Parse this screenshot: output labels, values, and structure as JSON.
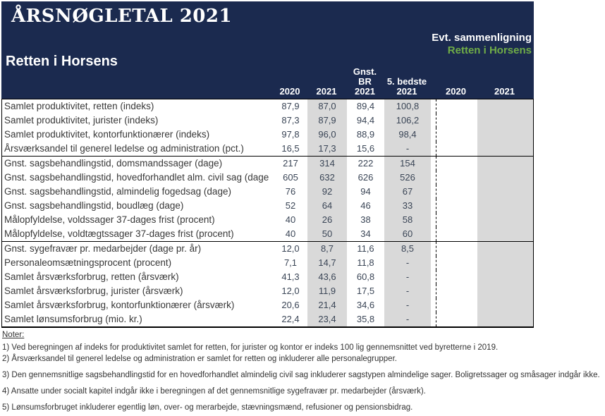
{
  "header": {
    "title": "ÅRSNØGLETAL 2021",
    "court_name": "Retten i Horsens",
    "comparison_label": "Evt. sammenligning",
    "comparison_court": "Retten i Horsens"
  },
  "colors": {
    "header_navy": "#1b2a4f",
    "comparison_green": "#70ad47",
    "shaded_column_gray": "#d9d9d9"
  },
  "columns": {
    "c2020": "2020",
    "c2021": "2021",
    "gnst_br": {
      "line1": "Gnst. BR",
      "line2": "2021"
    },
    "best5": {
      "line1": "5. bedste",
      "line2": "2021"
    },
    "cmp2020": "2020",
    "cmp2021": "2021"
  },
  "table": {
    "rows": [
      {
        "label": "Samlet produktivitet, retten (indeks)",
        "values": [
          "87,9",
          "87,0",
          "89,4",
          "100,8",
          "",
          ""
        ]
      },
      {
        "label": "Samlet produktivitet, jurister (indeks)",
        "values": [
          "87,3",
          "87,9",
          "94,4",
          "106,2",
          "",
          ""
        ]
      },
      {
        "label": "Samlet produktivitet, kontorfunktionærer (indeks)",
        "values": [
          "97,8",
          "96,0",
          "88,9",
          "98,4",
          "",
          ""
        ]
      },
      {
        "label": "Årsværksandel til generel ledelse og administration (pct.)",
        "values": [
          "16,5",
          "17,3",
          "15,6",
          "-",
          "",
          ""
        ]
      },
      {
        "label": "Gnst. sagsbehandlingstid, domsmandssager (dage)",
        "values": [
          "217",
          "314",
          "222",
          "154",
          "",
          ""
        ]
      },
      {
        "label": "Gnst. sagsbehandlingstid, hovedforhandlet alm. civil sag (dage",
        "values": [
          "605",
          "632",
          "626",
          "526",
          "",
          ""
        ]
      },
      {
        "label": "Gnst. sagsbehandlingstid, almindelig fogedsag (dage)",
        "values": [
          "76",
          "92",
          "94",
          "67",
          "",
          ""
        ]
      },
      {
        "label": "Gnst. sagsbehandlingstid, boudlæg (dage)",
        "values": [
          "52",
          "64",
          "46",
          "33",
          "",
          ""
        ]
      },
      {
        "label": "Målopfyldelse, voldssager 37-dages frist (procent)",
        "values": [
          "40",
          "26",
          "38",
          "58",
          "",
          ""
        ]
      },
      {
        "label": "Målopfyldelse, voldtægtssager 37-dages frist (procent)",
        "values": [
          "40",
          "50",
          "34",
          "60",
          "",
          ""
        ]
      },
      {
        "label": "Gnst. sygefravær pr. medarbejder (dage pr. år)",
        "values": [
          "12,0",
          "8,7",
          "11,6",
          "8,5",
          "",
          ""
        ]
      },
      {
        "label": "Personaleomsætningsprocent (procent)",
        "values": [
          "7,1",
          "14,7",
          "11,8",
          "-",
          "",
          ""
        ]
      },
      {
        "label": "Samlet årsværksforbrug, retten (årsværk)",
        "values": [
          "41,3",
          "43,6",
          "60,8",
          "-",
          "",
          ""
        ]
      },
      {
        "label": "Samlet årsværksforbrug, jurister (årsværk)",
        "values": [
          "12,0",
          "11,9",
          "17,5",
          "-",
          "",
          ""
        ]
      },
      {
        "label": "Samlet årsværksforbrug, kontorfunktionærer (årsværk)",
        "values": [
          "20,6",
          "21,4",
          "34,6",
          "-",
          "",
          ""
        ]
      },
      {
        "label": "Samlet lønsumsforbrug (mio. kr.)",
        "values": [
          "22,4",
          "23,4",
          "35,8",
          "-",
          "",
          ""
        ]
      }
    ]
  },
  "notes": {
    "heading": "Noter:",
    "items": [
      "1) Ved beregningen af indeks for produktivitet samlet for retten, for jurister og kontor er indeks 100 lig gennemsnittet ved byretterne i 2019.",
      "2) Årsværksandel til generel ledelse og administration er samlet for retten og inkluderer alle personalegrupper.",
      "3) Den gennemsnitlige sagsbehandlingstid for en hovedforhandlet almindelig civil sag inkluderer sagstypen almindelige sager. Boligretssager og småsager indgår ikke.",
      "4) Ansatte under socialt kapitel indgår ikke i beregningen af det gennemsnitlige sygefravær pr. medarbejder (årsværk).",
      "5) Lønsumsforbruget inkluderer egentlig løn, over- og merarbejde, stævningsmænd, refusioner og pensionsbidrag."
    ]
  }
}
